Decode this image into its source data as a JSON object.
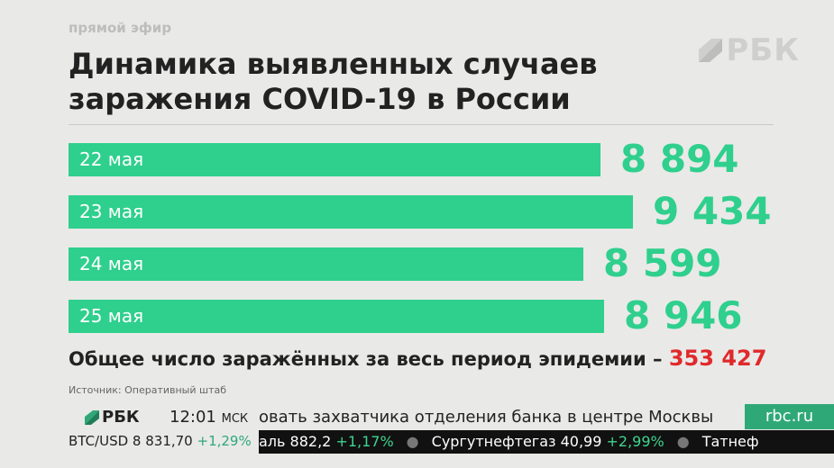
{
  "header": {
    "live_label": "прямой эфир",
    "logo_text": "РБК",
    "title_line1": "Динамика выявленных случаев",
    "title_line2": "заражения COVID-19 в России"
  },
  "chart_data": {
    "type": "bar",
    "orientation": "horizontal",
    "title": "Динамика выявленных случаев заражения COVID-19 в России",
    "categories": [
      "22 мая",
      "23 мая",
      "24 мая",
      "25 мая"
    ],
    "values": [
      8894,
      9434,
      8599,
      8946
    ],
    "value_labels": [
      "8 894",
      "9 434",
      "8 599",
      "8 946"
    ],
    "xlim": [
      0,
      9434
    ],
    "bar_color": "#2fcf8d"
  },
  "summary": {
    "text": "Общее число заражённых за весь период эпидемии –",
    "value": "353 427",
    "value_color": "#e0292b"
  },
  "source": "Источник: Оперативный штаб",
  "ticker": {
    "logo": "РБК",
    "time": "12:01",
    "tz": "МСК",
    "news": "овать захватчика отделения банка в центре Москвы",
    "site": "rbc.ru",
    "btc_label": "BTC/USD 8 831,70",
    "btc_change": "+1,29%",
    "quotes": [
      {
        "name": "аль",
        "value": "882,2",
        "change": "+1,17%"
      },
      {
        "name": "Сургутнефтегаз",
        "value": "40,99",
        "change": "+2,99%"
      },
      {
        "name": "Татнеф",
        "value": "",
        "change": ""
      }
    ]
  }
}
